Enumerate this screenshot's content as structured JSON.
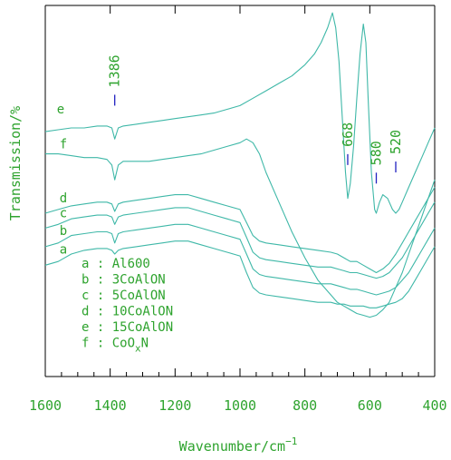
{
  "chart_data": {
    "type": "line",
    "xlabel": "Wavenumber/cm",
    "xlabel_sup": "−1",
    "ylabel": "Transmission/%",
    "x_reversed": true,
    "xlim": [
      1600,
      400
    ],
    "xticks": [
      "1600",
      "1400",
      "1200",
      "1000",
      "800",
      "600",
      "400"
    ],
    "line_color": "#3fb8a8",
    "text_color": "#2ea32e",
    "peak_marker_color": "#2020c0",
    "y_units": "relative (no scale shown)",
    "series": [
      {
        "name": "a",
        "label": "a",
        "x": [
          1600,
          1560,
          1520,
          1480,
          1440,
          1410,
          1395,
          1386,
          1375,
          1360,
          1320,
          1280,
          1240,
          1200,
          1160,
          1120,
          1080,
          1040,
          1000,
          980,
          960,
          940,
          920,
          880,
          840,
          800,
          760,
          720,
          700,
          680,
          660,
          640,
          620,
          600,
          580,
          560,
          540,
          520,
          500,
          480,
          460,
          440,
          420,
          400
        ],
        "y": [
          30,
          31,
          33,
          34,
          34.5,
          34.5,
          34,
          33,
          34,
          34.5,
          35,
          35.5,
          36,
          36.5,
          36.5,
          35.5,
          34.5,
          33.5,
          32.5,
          28,
          24,
          22.5,
          22,
          21.5,
          21,
          20.5,
          20,
          20,
          19.5,
          19.5,
          19,
          19,
          19,
          18.5,
          18.5,
          19,
          19.5,
          20,
          21,
          23,
          26,
          29,
          32,
          35
        ]
      },
      {
        "name": "b",
        "label": "b",
        "x": [
          1600,
          1560,
          1520,
          1480,
          1440,
          1410,
          1395,
          1386,
          1375,
          1360,
          1320,
          1280,
          1240,
          1200,
          1160,
          1120,
          1080,
          1040,
          1000,
          980,
          960,
          940,
          920,
          880,
          840,
          800,
          760,
          720,
          700,
          680,
          660,
          640,
          620,
          600,
          580,
          560,
          540,
          520,
          500,
          480,
          460,
          440,
          420,
          400
        ],
        "y": [
          35,
          36,
          38,
          38.5,
          39,
          39,
          38.5,
          36,
          38.5,
          39,
          39.5,
          40,
          40.5,
          41,
          41,
          40,
          39,
          38,
          37,
          33,
          29,
          27.5,
          27,
          26.5,
          26,
          25.5,
          25,
          25,
          24.5,
          24,
          23.5,
          23.5,
          23,
          22.5,
          22,
          22.5,
          23,
          24,
          26,
          28,
          31,
          34,
          37,
          40
        ]
      },
      {
        "name": "c",
        "label": "c",
        "x": [
          1600,
          1560,
          1520,
          1480,
          1440,
          1410,
          1395,
          1386,
          1375,
          1360,
          1320,
          1280,
          1240,
          1200,
          1160,
          1120,
          1080,
          1040,
          1000,
          980,
          960,
          940,
          920,
          880,
          840,
          800,
          760,
          720,
          700,
          680,
          660,
          640,
          620,
          600,
          580,
          560,
          540,
          520,
          500,
          480,
          460,
          440,
          420,
          400
        ],
        "y": [
          40,
          41,
          42.5,
          43,
          43.5,
          43.5,
          43,
          41,
          43,
          43.5,
          44,
          44.5,
          45,
          45.5,
          45.5,
          44.5,
          43.5,
          42.5,
          41.5,
          37.5,
          33.5,
          32,
          31.5,
          31,
          30.5,
          30,
          29.5,
          29.5,
          29,
          28.5,
          28,
          28,
          27.5,
          27,
          26.5,
          27,
          28,
          30,
          32,
          35,
          38,
          41,
          44,
          47
        ]
      },
      {
        "name": "d",
        "label": "d",
        "x": [
          1600,
          1560,
          1520,
          1480,
          1440,
          1410,
          1395,
          1386,
          1375,
          1360,
          1320,
          1280,
          1240,
          1200,
          1160,
          1120,
          1080,
          1040,
          1000,
          980,
          960,
          940,
          920,
          880,
          840,
          800,
          760,
          720,
          700,
          680,
          660,
          640,
          620,
          600,
          580,
          560,
          540,
          520,
          500,
          480,
          460,
          440,
          420,
          400
        ],
        "y": [
          44,
          45,
          46,
          46.5,
          47,
          47,
          46.5,
          44.5,
          46.5,
          47,
          47.5,
          48,
          48.5,
          49,
          49,
          48,
          47,
          46,
          45,
          41.5,
          38,
          36.5,
          36,
          35.5,
          35,
          34.5,
          34,
          33.5,
          33,
          32,
          31,
          31,
          30,
          29,
          28,
          29,
          30.5,
          33,
          36,
          39,
          42,
          45,
          48,
          51
        ]
      },
      {
        "name": "e",
        "label": "e",
        "x": [
          1600,
          1560,
          1520,
          1480,
          1440,
          1410,
          1395,
          1386,
          1375,
          1360,
          1320,
          1280,
          1240,
          1200,
          1160,
          1120,
          1080,
          1040,
          1000,
          960,
          920,
          880,
          840,
          800,
          770,
          750,
          730,
          715,
          705,
          695,
          685,
          675,
          668,
          660,
          650,
          640,
          630,
          620,
          612,
          605,
          595,
          585,
          580,
          570,
          560,
          545,
          530,
          520,
          510,
          500,
          480,
          460,
          440,
          420,
          400
        ],
        "y": [
          66,
          66.5,
          67,
          67,
          67.5,
          67.5,
          67,
          64,
          67,
          67.5,
          68,
          68.5,
          69,
          69.5,
          70,
          70.5,
          71,
          72,
          73,
          75,
          77,
          79,
          81,
          84,
          87,
          90,
          94,
          98,
          94,
          85,
          70,
          55,
          48,
          52,
          62,
          75,
          87,
          95,
          90,
          75,
          55,
          45,
          44,
          47,
          49,
          48,
          45,
          44,
          45,
          47,
          51,
          55,
          59,
          63,
          67
        ]
      },
      {
        "name": "f",
        "label": "f",
        "x": [
          1600,
          1560,
          1520,
          1480,
          1440,
          1410,
          1395,
          1386,
          1375,
          1360,
          1320,
          1280,
          1240,
          1200,
          1160,
          1120,
          1080,
          1040,
          1000,
          980,
          960,
          940,
          920,
          880,
          840,
          800,
          760,
          720,
          700,
          680,
          660,
          640,
          620,
          600,
          580,
          560,
          540,
          520,
          500,
          480,
          460,
          440,
          420,
          400
        ],
        "y": [
          60,
          60,
          59.5,
          59,
          59,
          58.5,
          57,
          53,
          57,
          58,
          58,
          58,
          58.5,
          59,
          59.5,
          60,
          61,
          62,
          63,
          64,
          63,
          60,
          55,
          47,
          39,
          32,
          26,
          22,
          20,
          19,
          18,
          17,
          16.5,
          16,
          16.5,
          18,
          20,
          24,
          28,
          33,
          38,
          43,
          48,
          53
        ]
      }
    ],
    "peaks": [
      {
        "label": "1386",
        "x": 1386,
        "y": 73
      },
      {
        "label": "668",
        "x": 668,
        "y": 57
      },
      {
        "label": "580",
        "x": 580,
        "y": 52
      },
      {
        "label": "520",
        "x": 520,
        "y": 55
      }
    ],
    "legend": [
      {
        "key": "a",
        "text": "Al600"
      },
      {
        "key": "b",
        "text": "3CoAlON"
      },
      {
        "key": "c",
        "text": "5CoAlON"
      },
      {
        "key": "d",
        "text": "10CoAlON"
      },
      {
        "key": "e",
        "text": "15CoAlON"
      },
      {
        "key": "f",
        "text": "CoO",
        "sub": "x",
        "after": "N"
      }
    ],
    "legend_sep": ":"
  }
}
